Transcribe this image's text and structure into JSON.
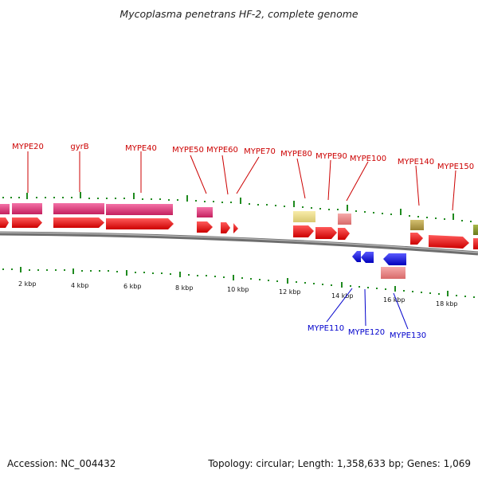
{
  "title": "Mycoplasma penetrans HF-2, complete genome",
  "footer": {
    "accession": "Accession: NC_004432",
    "summary": "Topology: circular; Length: 1,358,633 bp; Genes: 1,069"
  },
  "scale_labels": [
    "2 kbp",
    "4 kbp",
    "6 kbp",
    "8 kbp",
    "10 kbp",
    "12 kbp",
    "14 kbp",
    "16 kbp",
    "18 kbp"
  ],
  "forward_labels": [
    "MYPE20",
    "gyrB",
    "MYPE40",
    "MYPE50",
    "MYPE60",
    "MYPE70",
    "MYPE80",
    "MYPE90",
    "MYPE100",
    "MYPE140",
    "MYPE150"
  ],
  "reverse_labels": [
    "MYPE110",
    "MYPE120",
    "MYPE130"
  ],
  "colors": {
    "cds": "#ee0000",
    "cog_magenta": "#e6337a",
    "cog_yellow": "#eedd88",
    "cog_salmon": "#ee8888",
    "cog_olive": "#b8a048",
    "cog_green": "#8a9a2a",
    "reverse_cds": "#1a1aee",
    "tick": "#1f8a1f",
    "backbone": "#6e6e6e"
  }
}
